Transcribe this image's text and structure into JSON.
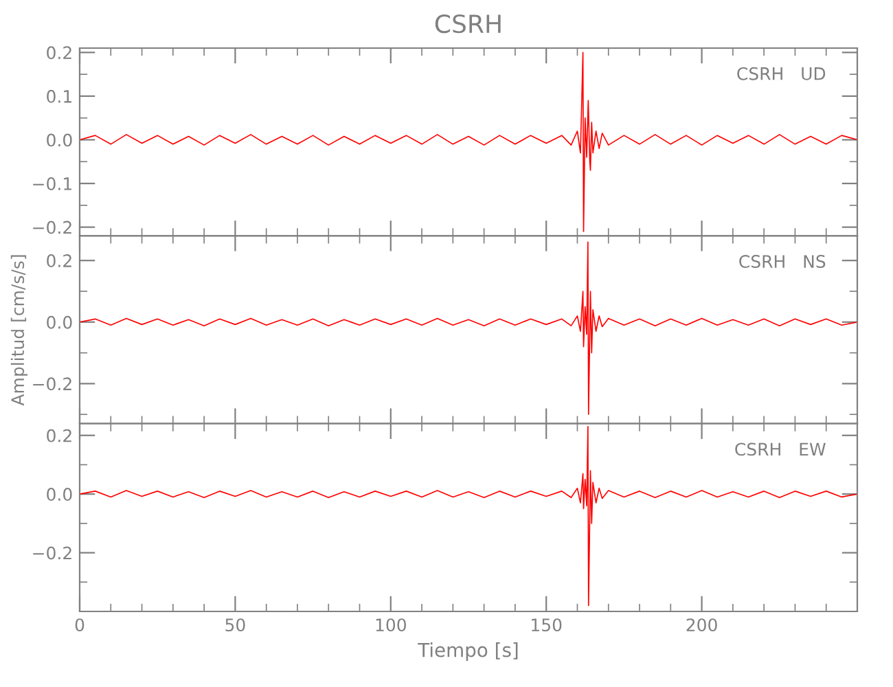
{
  "chart_data": [
    {
      "type": "line",
      "title": "CSRH",
      "annotations": [
        "CSRH   UD"
      ],
      "xlim": [
        0,
        250
      ],
      "xticks": [
        0,
        50,
        100,
        150,
        200
      ],
      "ylim": [
        -0.22,
        0.21
      ],
      "yticks": [
        {
          "value": 0.2,
          "label": "0.2"
        },
        {
          "value": 0.1,
          "label": "0.1"
        },
        {
          "value": 0.0,
          "label": "0.0"
        },
        {
          "value": -0.1,
          "label": "−0.1"
        },
        {
          "value": -0.2,
          "label": "−0.2"
        }
      ],
      "tick_labels": "y",
      "grid": false,
      "legend": false,
      "x": [
        0,
        5,
        10,
        15,
        20,
        25,
        30,
        35,
        40,
        45,
        50,
        55,
        60,
        65,
        70,
        75,
        80,
        85,
        90,
        95,
        100,
        105,
        110,
        115,
        120,
        125,
        130,
        135,
        140,
        145,
        150,
        155,
        158,
        160,
        161,
        161.8,
        162,
        162.5,
        163,
        163.5,
        164,
        164.2,
        164.6,
        165,
        166,
        167,
        168,
        170,
        175,
        180,
        185,
        190,
        195,
        200,
        205,
        210,
        215,
        220,
        225,
        230,
        235,
        240,
        245,
        250
      ],
      "series": [
        {
          "color": "#ff0000",
          "values": [
            0.0,
            0.01,
            -0.01,
            0.012,
            -0.008,
            0.01,
            -0.01,
            0.008,
            -0.012,
            0.01,
            -0.008,
            0.012,
            -0.01,
            0.008,
            -0.01,
            0.01,
            -0.012,
            0.008,
            -0.01,
            0.01,
            -0.008,
            0.01,
            -0.01,
            0.012,
            -0.01,
            0.008,
            -0.012,
            0.01,
            -0.01,
            0.01,
            -0.008,
            0.01,
            -0.012,
            0.02,
            -0.03,
            0.2,
            -0.21,
            0.05,
            -0.04,
            0.09,
            -0.05,
            -0.07,
            0.04,
            -0.03,
            0.02,
            -0.02,
            0.015,
            -0.012,
            0.01,
            -0.01,
            0.012,
            -0.01,
            0.01,
            -0.012,
            0.01,
            -0.008,
            0.01,
            -0.01,
            0.012,
            -0.01,
            0.008,
            -0.01,
            0.01,
            0.0
          ]
        }
      ]
    },
    {
      "type": "line",
      "annotations": [
        "CSRH   NS"
      ],
      "ylabel": "Amplitud [cm/s/s]",
      "xlim": [
        0,
        250
      ],
      "xticks": [
        0,
        50,
        100,
        150,
        200
      ],
      "ylim": [
        -0.33,
        0.28
      ],
      "yticks": [
        {
          "value": 0.2,
          "label": "0.2"
        },
        {
          "value": 0.0,
          "label": "0.0"
        },
        {
          "value": -0.2,
          "label": "−0.2"
        }
      ],
      "tick_labels": "y",
      "grid": false,
      "legend": false,
      "x": [
        0,
        5,
        10,
        15,
        20,
        25,
        30,
        35,
        40,
        45,
        50,
        55,
        60,
        65,
        70,
        75,
        80,
        85,
        90,
        95,
        100,
        105,
        110,
        115,
        120,
        125,
        130,
        135,
        140,
        145,
        150,
        155,
        158,
        160,
        161,
        161.8,
        162,
        162.5,
        163,
        163.4,
        163.6,
        164.2,
        164.6,
        165,
        166,
        167,
        168,
        170,
        175,
        180,
        185,
        190,
        195,
        200,
        205,
        210,
        215,
        220,
        225,
        230,
        235,
        240,
        245,
        250
      ],
      "series": [
        {
          "color": "#ff0000",
          "values": [
            0.0,
            0.01,
            -0.01,
            0.012,
            -0.008,
            0.01,
            -0.01,
            0.008,
            -0.012,
            0.01,
            -0.008,
            0.012,
            -0.01,
            0.008,
            -0.01,
            0.01,
            -0.012,
            0.008,
            -0.01,
            0.01,
            -0.008,
            0.01,
            -0.01,
            0.012,
            -0.01,
            0.008,
            -0.012,
            0.01,
            -0.01,
            0.01,
            -0.008,
            0.01,
            -0.012,
            0.02,
            -0.03,
            0.1,
            -0.08,
            0.05,
            -0.04,
            0.26,
            -0.3,
            0.1,
            -0.1,
            0.04,
            -0.03,
            0.02,
            -0.015,
            0.012,
            -0.01,
            0.01,
            -0.012,
            0.01,
            -0.01,
            0.012,
            -0.01,
            0.008,
            -0.01,
            0.01,
            -0.012,
            0.01,
            -0.008,
            0.01,
            -0.01,
            0.0
          ]
        }
      ]
    },
    {
      "type": "line",
      "annotations": [
        "CSRH   EW"
      ],
      "xlabel": "Tiempo [s]",
      "xlim": [
        0,
        250
      ],
      "xticks": [
        0,
        50,
        100,
        150,
        200
      ],
      "ylim": [
        -0.4,
        0.24
      ],
      "yticks": [
        {
          "value": 0.2,
          "label": "0.2"
        },
        {
          "value": 0.0,
          "label": "0.0"
        },
        {
          "value": -0.2,
          "label": "−0.2"
        }
      ],
      "grid": false,
      "legend": false,
      "x": [
        0,
        5,
        10,
        15,
        20,
        25,
        30,
        35,
        40,
        45,
        50,
        55,
        60,
        65,
        70,
        75,
        80,
        85,
        90,
        95,
        100,
        105,
        110,
        115,
        120,
        125,
        130,
        135,
        140,
        145,
        150,
        155,
        158,
        160,
        161,
        161.8,
        162,
        162.5,
        163,
        163.4,
        163.6,
        164.2,
        164.6,
        165,
        166,
        167,
        168,
        170,
        175,
        180,
        185,
        190,
        195,
        200,
        205,
        210,
        215,
        220,
        225,
        230,
        235,
        240,
        245,
        250
      ],
      "series": [
        {
          "color": "#ff0000",
          "values": [
            0.0,
            0.01,
            -0.01,
            0.012,
            -0.008,
            0.01,
            -0.01,
            0.008,
            -0.012,
            0.01,
            -0.008,
            0.012,
            -0.01,
            0.008,
            -0.01,
            0.01,
            -0.012,
            0.008,
            -0.01,
            0.01,
            -0.008,
            0.01,
            -0.01,
            0.012,
            -0.01,
            0.008,
            -0.012,
            0.01,
            -0.01,
            0.01,
            -0.008,
            0.01,
            -0.012,
            0.02,
            -0.03,
            0.07,
            -0.05,
            0.05,
            -0.04,
            0.23,
            -0.38,
            0.08,
            -0.1,
            0.04,
            -0.03,
            0.02,
            -0.015,
            0.012,
            -0.01,
            0.01,
            -0.012,
            0.01,
            -0.01,
            0.012,
            -0.01,
            0.008,
            -0.01,
            0.01,
            -0.012,
            0.01,
            -0.008,
            0.01,
            -0.01,
            0.0
          ]
        }
      ]
    }
  ]
}
